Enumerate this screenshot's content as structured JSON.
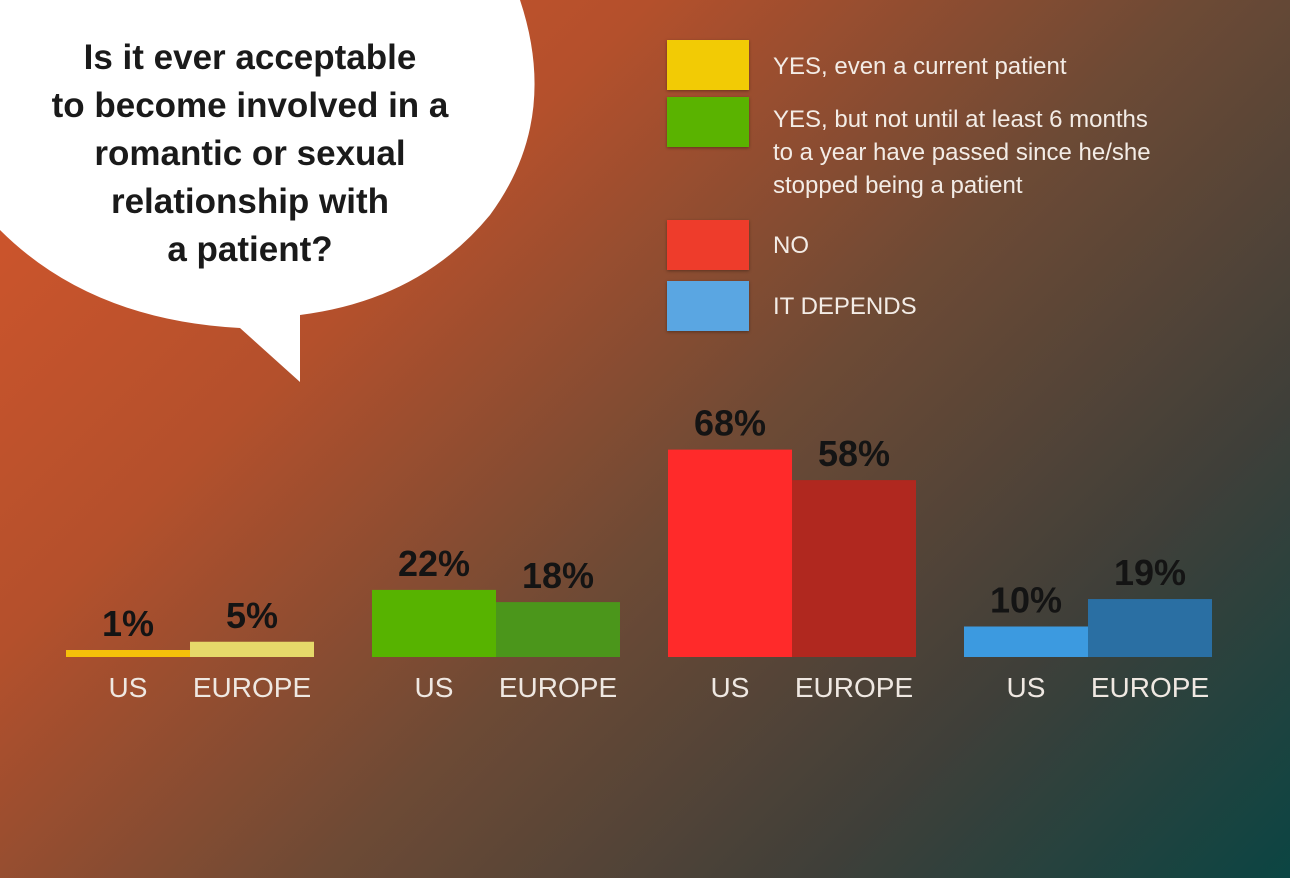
{
  "question": {
    "lines": [
      "Is it ever acceptable",
      "to become involved in a",
      "romantic or sexual",
      "relationship with",
      "a patient?"
    ]
  },
  "legend": [
    {
      "label": "YES, even a current patient",
      "color": "#f2cb05"
    },
    {
      "label": "YES, but not until at least 6 months\nto a year have passed since he/she\nstopped being a patient",
      "color": "#5ab300"
    },
    {
      "label": "NO",
      "color": "#ee3c2b"
    },
    {
      "label": "IT DEPENDS",
      "color": "#5aa6e2"
    }
  ],
  "chart_data": {
    "type": "bar",
    "categories": [
      "US",
      "EUROPE"
    ],
    "series": [
      {
        "name": "YES, even a current patient",
        "values": [
          1,
          5
        ],
        "value_labels": [
          "1%",
          "5%"
        ],
        "colors": [
          "#f5c10a",
          "#e6d96a"
        ]
      },
      {
        "name": "YES, but not until at least 6 months to a year have passed since he/she stopped being a patient",
        "values": [
          22,
          18
        ],
        "value_labels": [
          "22%",
          "18%"
        ],
        "colors": [
          "#57b300",
          "#4b961b"
        ]
      },
      {
        "name": "NO",
        "values": [
          68,
          58
        ],
        "value_labels": [
          "68%",
          "58%"
        ],
        "colors": [
          "#ff2a2a",
          "#b0281f"
        ]
      },
      {
        "name": "IT DEPENDS",
        "values": [
          10,
          19
        ],
        "value_labels": [
          "10%",
          "19%"
        ],
        "colors": [
          "#3c9ae0",
          "#2a6fa3"
        ]
      }
    ],
    "ylim": [
      0,
      100
    ],
    "title": "Is it ever acceptable to become involved in a romantic or sexual relationship with a patient?"
  }
}
